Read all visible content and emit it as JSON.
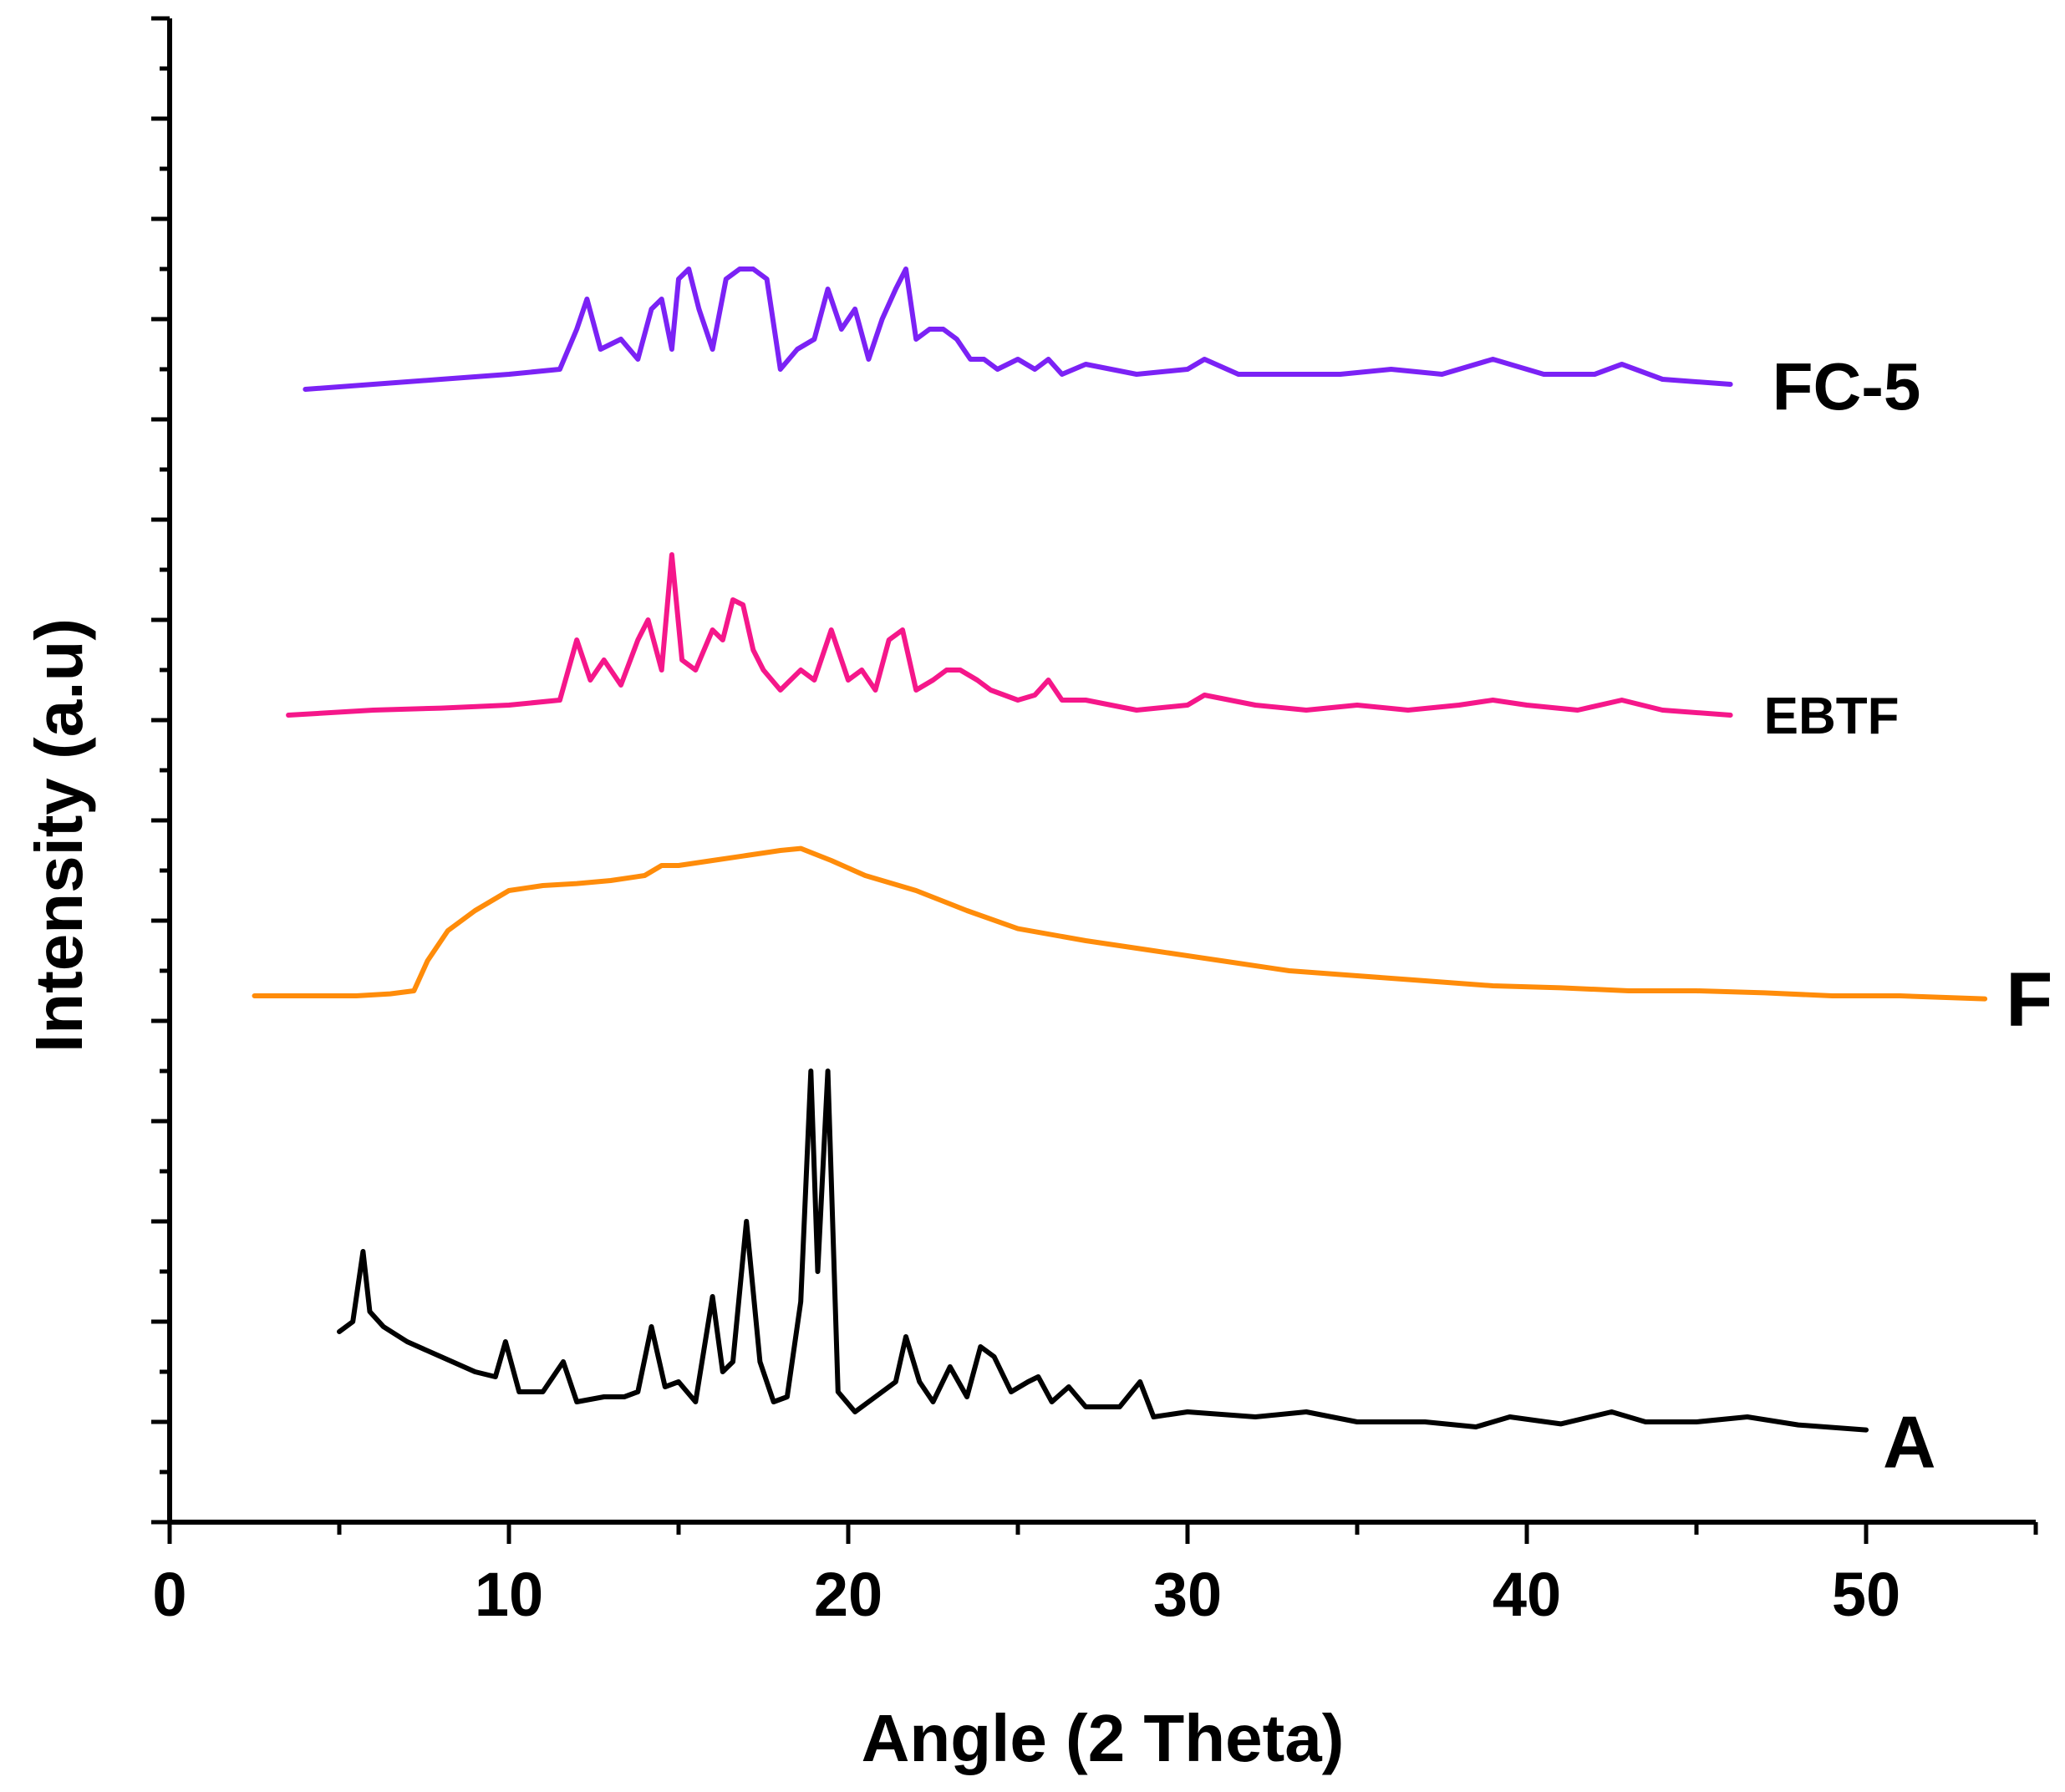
{
  "chart_data": {
    "type": "line",
    "title": "",
    "xlabel": "Angle (2 Theta)",
    "ylabel": "Intensity (a.u)",
    "xlim": [
      0,
      55
    ],
    "ylim": [
      0,
      15
    ],
    "x_ticks": [
      0,
      10,
      20,
      30,
      40,
      50
    ],
    "x_tick_labels": [
      "0",
      "10",
      "20",
      "30",
      "40",
      "50"
    ],
    "y_tick_labels_shown": false,
    "grid": false,
    "legend": "inline labels at right end of each curve",
    "series": [
      {
        "name": "FC-5",
        "color": "#7B22F5",
        "label": "FC-5",
        "x": [
          4.0,
          6.0,
          8.0,
          10.0,
          11.5,
          12.0,
          12.3,
          12.7,
          13.3,
          13.8,
          14.2,
          14.5,
          14.8,
          15.0,
          15.3,
          15.6,
          16.0,
          16.4,
          16.8,
          17.2,
          17.6,
          18.0,
          18.5,
          19.0,
          19.4,
          19.8,
          20.2,
          20.6,
          21.0,
          21.4,
          21.7,
          22.0,
          22.4,
          22.8,
          23.2,
          23.6,
          24.0,
          24.4,
          25.0,
          25.5,
          25.9,
          26.3,
          27.0,
          28.5,
          30.0,
          30.5,
          31.5,
          33.0,
          34.5,
          36.0,
          37.5,
          39.0,
          40.5,
          42.0,
          42.8,
          44.0,
          46.0
        ],
        "y": [
          11.3,
          11.35,
          11.4,
          11.45,
          11.5,
          11.9,
          12.2,
          11.7,
          11.8,
          11.6,
          12.1,
          12.2,
          11.7,
          12.4,
          12.5,
          12.1,
          11.7,
          12.4,
          12.5,
          12.5,
          12.4,
          11.5,
          11.7,
          11.8,
          12.3,
          11.9,
          12.1,
          11.6,
          12.0,
          12.3,
          12.5,
          11.8,
          11.9,
          11.9,
          11.8,
          11.6,
          11.6,
          11.5,
          11.6,
          11.5,
          11.6,
          11.45,
          11.55,
          11.45,
          11.5,
          11.6,
          11.45,
          11.45,
          11.45,
          11.5,
          11.45,
          11.6,
          11.45,
          11.45,
          11.55,
          11.4,
          11.35
        ]
      },
      {
        "name": "EBTF",
        "color": "#F5178A",
        "label": "EBTF",
        "x": [
          3.5,
          6.0,
          8.0,
          10.0,
          11.5,
          12.0,
          12.4,
          12.8,
          13.3,
          13.8,
          14.1,
          14.5,
          14.8,
          15.1,
          15.5,
          16.0,
          16.3,
          16.6,
          16.9,
          17.2,
          17.5,
          18.0,
          18.6,
          19.0,
          19.5,
          20.0,
          20.4,
          20.8,
          21.2,
          21.6,
          22.0,
          22.5,
          22.9,
          23.3,
          23.8,
          24.2,
          25.0,
          25.5,
          25.9,
          26.3,
          27.0,
          28.5,
          30.0,
          30.5,
          32.0,
          33.5,
          35.0,
          36.5,
          38.0,
          39.0,
          40.0,
          41.5,
          42.8,
          44.0,
          46.0
        ],
        "y": [
          8.05,
          8.1,
          8.12,
          8.15,
          8.2,
          8.8,
          8.4,
          8.6,
          8.35,
          8.8,
          9.0,
          8.5,
          9.65,
          8.6,
          8.5,
          8.9,
          8.8,
          9.2,
          9.15,
          8.7,
          8.5,
          8.3,
          8.5,
          8.4,
          8.9,
          8.4,
          8.5,
          8.3,
          8.8,
          8.9,
          8.3,
          8.4,
          8.5,
          8.5,
          8.4,
          8.3,
          8.2,
          8.25,
          8.4,
          8.2,
          8.2,
          8.1,
          8.15,
          8.25,
          8.15,
          8.1,
          8.15,
          8.1,
          8.15,
          8.2,
          8.15,
          8.1,
          8.2,
          8.1,
          8.05
        ]
      },
      {
        "name": "F",
        "color": "#FF8C0A",
        "label": "F",
        "x": [
          2.5,
          4.0,
          5.5,
          6.5,
          7.2,
          7.6,
          8.2,
          9.0,
          10.0,
          11.0,
          12.0,
          13.0,
          14.0,
          14.5,
          15.0,
          16.0,
          17.0,
          18.0,
          18.6,
          19.5,
          20.5,
          22.0,
          23.5,
          25.0,
          27.0,
          29.0,
          31.0,
          33.0,
          35.0,
          37.0,
          39.0,
          41.0,
          43.0,
          45.0,
          47.0,
          49.0,
          51.0,
          53.5
        ],
        "y": [
          5.25,
          5.25,
          5.25,
          5.27,
          5.3,
          5.6,
          5.9,
          6.1,
          6.3,
          6.35,
          6.37,
          6.4,
          6.45,
          6.55,
          6.55,
          6.6,
          6.65,
          6.7,
          6.72,
          6.6,
          6.45,
          6.3,
          6.1,
          5.92,
          5.8,
          5.7,
          5.6,
          5.5,
          5.45,
          5.4,
          5.35,
          5.33,
          5.3,
          5.3,
          5.28,
          5.25,
          5.25,
          5.22
        ]
      },
      {
        "name": "A",
        "color": "#000000",
        "label": "A",
        "x": [
          5.0,
          5.4,
          5.7,
          5.9,
          6.3,
          7.0,
          8.0,
          9.0,
          9.6,
          9.9,
          10.3,
          11.0,
          11.6,
          12.0,
          12.8,
          13.4,
          13.8,
          14.2,
          14.6,
          15.0,
          15.5,
          16.0,
          16.3,
          16.6,
          17.0,
          17.4,
          17.8,
          18.2,
          18.6,
          18.9,
          19.1,
          19.4,
          19.7,
          20.2,
          21.0,
          21.4,
          21.7,
          22.1,
          22.5,
          23.0,
          23.5,
          23.9,
          24.3,
          24.8,
          25.3,
          25.6,
          26.0,
          26.5,
          27.0,
          28.0,
          28.6,
          29.0,
          30.0,
          32.0,
          33.5,
          35.0,
          37.0,
          38.5,
          39.5,
          41.0,
          42.5,
          43.5,
          45.0,
          46.5,
          48.0,
          50.0
        ],
        "y": [
          1.9,
          2.0,
          2.7,
          2.1,
          1.95,
          1.8,
          1.65,
          1.5,
          1.45,
          1.8,
          1.3,
          1.3,
          1.6,
          1.2,
          1.25,
          1.25,
          1.3,
          1.95,
          1.35,
          1.4,
          1.2,
          2.25,
          1.5,
          1.6,
          3.0,
          1.6,
          1.2,
          1.25,
          2.2,
          4.5,
          2.5,
          4.5,
          1.3,
          1.1,
          1.3,
          1.4,
          1.85,
          1.4,
          1.2,
          1.55,
          1.25,
          1.75,
          1.65,
          1.3,
          1.4,
          1.45,
          1.2,
          1.35,
          1.15,
          1.15,
          1.4,
          1.05,
          1.1,
          1.05,
          1.1,
          1.0,
          1.0,
          0.95,
          1.05,
          0.98,
          1.1,
          1.0,
          1.0,
          1.05,
          0.97,
          0.92
        ]
      }
    ]
  }
}
